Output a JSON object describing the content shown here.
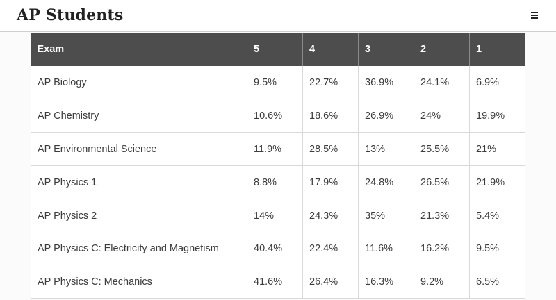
{
  "header": {
    "title": "AP Students",
    "menu_icon": "hamburger-menu-icon"
  },
  "table": {
    "columns": [
      "Exam",
      "5",
      "4",
      "3",
      "2",
      "1"
    ],
    "rows": [
      {
        "exam": "AP Biology",
        "scores": [
          "9.5%",
          "22.7%",
          "36.9%",
          "24.1%",
          "6.9%"
        ]
      },
      {
        "exam": "AP Chemistry",
        "scores": [
          "10.6%",
          "18.6%",
          "26.9%",
          "24%",
          "19.9%"
        ]
      },
      {
        "exam": "AP Environmental Science",
        "scores": [
          "11.9%",
          "28.5%",
          "13%",
          "25.5%",
          "21%"
        ]
      },
      {
        "exam": "AP Physics 1",
        "scores": [
          "8.8%",
          "17.9%",
          "24.8%",
          "26.5%",
          "21.9%"
        ]
      },
      {
        "exam": "AP Physics 2",
        "scores": [
          "14%",
          "24.3%",
          "35%",
          "21.3%",
          "5.4%"
        ]
      },
      {
        "exam": "AP Physics C: Electricity and Magnetism",
        "scores": [
          "40.4%",
          "22.4%",
          "11.6%",
          "16.2%",
          "9.5%"
        ]
      },
      {
        "exam": "AP Physics C: Mechanics",
        "scores": [
          "41.6%",
          "26.4%",
          "16.3%",
          "9.2%",
          "6.5%"
        ]
      }
    ]
  }
}
